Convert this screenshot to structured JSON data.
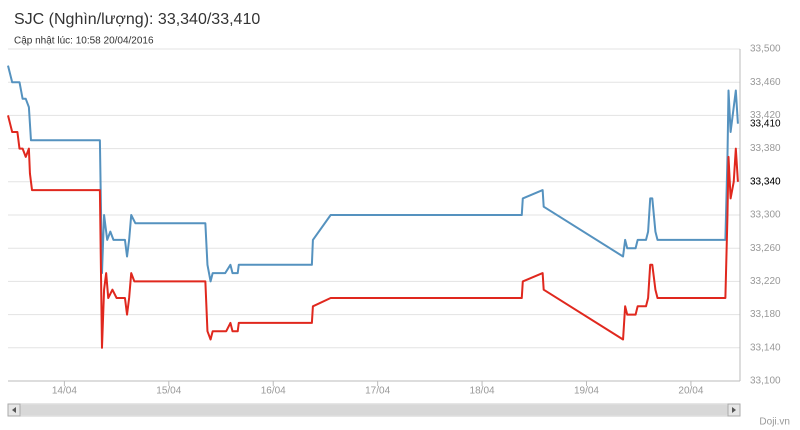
{
  "chart_data": {
    "type": "line",
    "title": "SJC (Nghìn/lượng): 33,340/33,410",
    "subtitle": "Cập nhật lúc: 10:58 20/04/2016",
    "source": "Doji.vn",
    "xlim": [
      13.46,
      20.47
    ],
    "xticks": [
      {
        "value": 14,
        "label": "14/04"
      },
      {
        "value": 15,
        "label": "15/04"
      },
      {
        "value": 16,
        "label": "16/04"
      },
      {
        "value": 17,
        "label": "17/04"
      },
      {
        "value": 18,
        "label": "18/04"
      },
      {
        "value": 19,
        "label": "19/04"
      },
      {
        "value": 20,
        "label": "20/04"
      }
    ],
    "ylim": [
      33100,
      33500
    ],
    "yticks": [
      {
        "value": 33100,
        "label": "33,100"
      },
      {
        "value": 33140,
        "label": "33,140"
      },
      {
        "value": 33180,
        "label": "33,180"
      },
      {
        "value": 33220,
        "label": "33,220"
      },
      {
        "value": 33260,
        "label": "33,260"
      },
      {
        "value": 33300,
        "label": "33,300"
      },
      {
        "value": 33340,
        "label": "33,340"
      },
      {
        "value": 33380,
        "label": "33,380"
      },
      {
        "value": 33420,
        "label": "33,420"
      },
      {
        "value": 33460,
        "label": "33,460"
      },
      {
        "value": 33500,
        "label": "33,500"
      }
    ],
    "grid": true,
    "series": [
      {
        "color": "#5592bf",
        "end_label": {
          "value": 33410,
          "label": "33,410"
        },
        "x": [
          13.46,
          13.5,
          13.57,
          13.6,
          13.63,
          13.66,
          13.68,
          14.34,
          14.36,
          14.38,
          14.41,
          14.44,
          14.47,
          14.58,
          14.6,
          14.62,
          14.64,
          14.68,
          15.35,
          15.37,
          15.4,
          15.42,
          15.54,
          15.59,
          15.61,
          15.66,
          15.67,
          16.37,
          16.38,
          16.55,
          18.38,
          18.39,
          18.58,
          18.59,
          19.35,
          19.37,
          19.39,
          19.47,
          19.49,
          19.57,
          19.59,
          19.61,
          19.63,
          19.66,
          19.68,
          20.33,
          20.35,
          20.36,
          20.38,
          20.41,
          20.43,
          20.45
        ],
        "values": [
          33480,
          33460,
          33460,
          33440,
          33440,
          33430,
          33390,
          33390,
          33230,
          33300,
          33270,
          33280,
          33270,
          33270,
          33250,
          33270,
          33300,
          33290,
          33290,
          33240,
          33220,
          33230,
          33230,
          33240,
          33230,
          33230,
          33240,
          33240,
          33270,
          33300,
          33300,
          33320,
          33330,
          33310,
          33250,
          33270,
          33260,
          33260,
          33270,
          33270,
          33280,
          33320,
          33320,
          33280,
          33270,
          33270,
          33370,
          33450,
          33400,
          33430,
          33450,
          33410
        ]
      },
      {
        "color": "#e0281e",
        "end_label": {
          "value": 33340,
          "label": "33,340"
        },
        "x": [
          13.46,
          13.5,
          13.55,
          13.57,
          13.6,
          13.63,
          13.66,
          13.67,
          13.69,
          14.34,
          14.36,
          14.38,
          14.4,
          14.42,
          14.46,
          14.5,
          14.58,
          14.6,
          14.62,
          14.64,
          14.67,
          15.35,
          15.37,
          15.4,
          15.42,
          15.55,
          15.59,
          15.61,
          15.66,
          15.67,
          16.37,
          16.38,
          16.55,
          18.38,
          18.39,
          18.58,
          18.59,
          19.35,
          19.37,
          19.39,
          19.47,
          19.49,
          19.57,
          19.59,
          19.61,
          19.63,
          19.66,
          19.68,
          20.33,
          20.35,
          20.36,
          20.38,
          20.41,
          20.43,
          20.45
        ],
        "values": [
          33420,
          33400,
          33400,
          33380,
          33380,
          33370,
          33380,
          33350,
          33330,
          33330,
          33140,
          33210,
          33230,
          33200,
          33210,
          33200,
          33200,
          33180,
          33200,
          33230,
          33220,
          33220,
          33160,
          33150,
          33160,
          33160,
          33170,
          33160,
          33160,
          33170,
          33170,
          33190,
          33200,
          33200,
          33220,
          33230,
          33210,
          33150,
          33190,
          33180,
          33180,
          33190,
          33190,
          33200,
          33240,
          33240,
          33210,
          33200,
          33200,
          33300,
          33370,
          33320,
          33340,
          33380,
          33340
        ]
      }
    ]
  }
}
